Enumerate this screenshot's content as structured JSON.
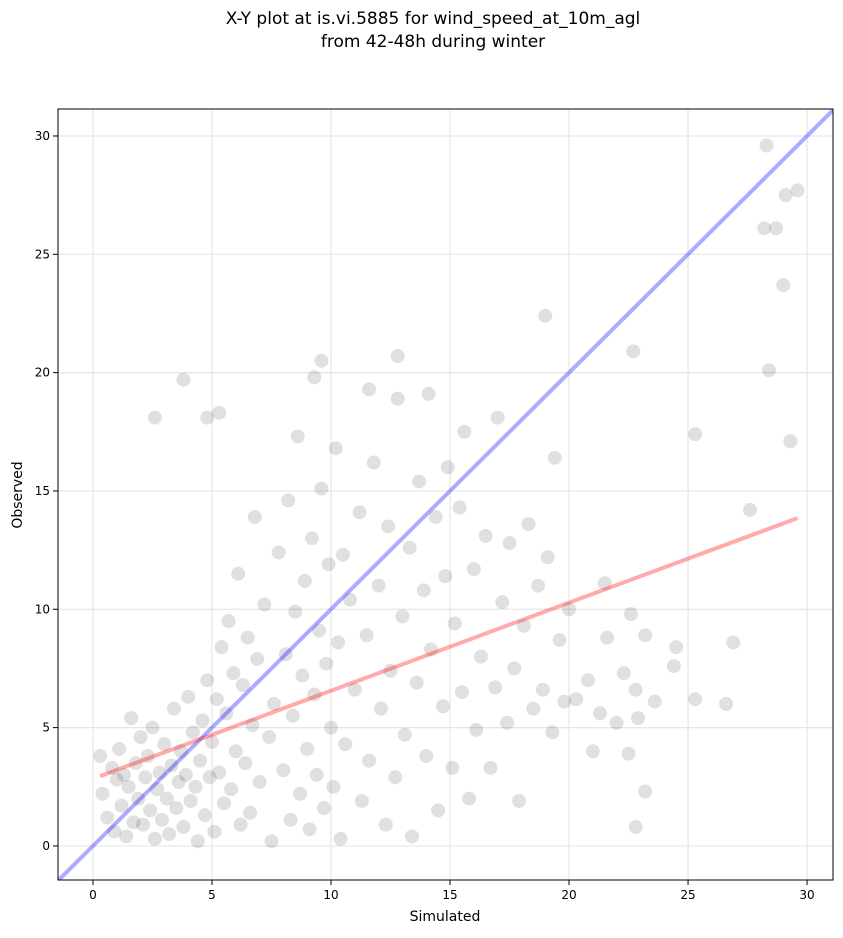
{
  "chart_data": {
    "type": "scatter",
    "title": "X-Y plot at is.vi.5885 for wind_speed_at_10m_agl",
    "subtitle": "from 42-48h during winter",
    "x_label": "Simulated",
    "y_label": "Observed",
    "xlim": [
      -1.47,
      31.09
    ],
    "ylim": [
      -1.44,
      31.14
    ],
    "xticks": [
      0,
      5,
      10,
      15,
      20,
      25,
      30
    ],
    "yticks": [
      0,
      5,
      10,
      15,
      20,
      25,
      30
    ],
    "grid": true,
    "series": [
      {
        "color": "#000000",
        "x": [
          0.3,
          0.4,
          0.6,
          0.8,
          0.9,
          1.0,
          1.1,
          1.2,
          1.3,
          1.4,
          1.5,
          1.6,
          1.7,
          1.8,
          1.9,
          2.0,
          2.1,
          2.2,
          2.3,
          2.4,
          2.5,
          2.6,
          2.7,
          2.8,
          2.9,
          3.0,
          3.1,
          3.2,
          3.3,
          3.4,
          3.5,
          3.6,
          3.7,
          3.8,
          3.9,
          4.0,
          4.1,
          4.2,
          4.3,
          4.4,
          4.5,
          4.6,
          4.7,
          4.8,
          4.9,
          5.0,
          5.1,
          5.2,
          5.3,
          5.4,
          5.5,
          5.6,
          5.7,
          5.8,
          5.9,
          6.0,
          6.1,
          6.2,
          6.3,
          6.4,
          6.5,
          6.6,
          6.7,
          6.8,
          6.9,
          7.0,
          7.2,
          7.4,
          7.5,
          7.6,
          7.8,
          8.0,
          8.1,
          8.2,
          8.3,
          8.4,
          8.5,
          8.6,
          8.7,
          8.8,
          8.9,
          9.0,
          9.1,
          9.2,
          9.3,
          9.4,
          9.5,
          9.6,
          9.7,
          9.8,
          9.9,
          10.0,
          10.1,
          10.2,
          10.3,
          10.4,
          10.5,
          10.6,
          10.8,
          11.0,
          11.2,
          11.3,
          11.5,
          11.6,
          11.8,
          12.0,
          12.1,
          12.3,
          12.4,
          12.5,
          12.7,
          12.8,
          13.0,
          13.1,
          13.3,
          13.4,
          13.6,
          13.7,
          13.9,
          14.0,
          14.1,
          14.2,
          14.4,
          14.5,
          14.7,
          14.8,
          14.9,
          15.1,
          15.2,
          15.4,
          15.5,
          15.6,
          15.8,
          16.0,
          16.1,
          16.3,
          16.5,
          16.7,
          16.9,
          17.0,
          17.2,
          17.4,
          17.5,
          17.7,
          17.9,
          18.1,
          18.3,
          18.5,
          18.7,
          18.9,
          19.1,
          19.3,
          19.4,
          19.6,
          19.8,
          20.0,
          20.3,
          20.8,
          21.0,
          21.3,
          21.5,
          21.6,
          22.0,
          22.3,
          22.5,
          22.6,
          22.8,
          22.9,
          23.2,
          23.6,
          24.4,
          24.5,
          28.3,
          29.6,
          29.1,
          28.2,
          28.7,
          29.0,
          28.4,
          29.3,
          19.0,
          22.7,
          25.3,
          27.6,
          26.9,
          26.6,
          25.3,
          23.2,
          22.8,
          3.8,
          2.6,
          4.8,
          5.3,
          9.6,
          12.8,
          11.6,
          9.3
        ],
        "values": [
          3.8,
          2.2,
          1.2,
          3.3,
          0.6,
          2.8,
          4.1,
          1.7,
          3.0,
          0.4,
          2.5,
          5.4,
          1.0,
          3.5,
          2.0,
          4.6,
          0.9,
          2.9,
          3.8,
          1.5,
          5.0,
          0.3,
          2.4,
          3.1,
          1.1,
          4.3,
          2.0,
          0.5,
          3.4,
          5.8,
          1.6,
          2.7,
          4.0,
          0.8,
          3.0,
          6.3,
          1.9,
          4.8,
          2.5,
          0.2,
          3.6,
          5.3,
          1.3,
          7.0,
          2.9,
          4.4,
          0.6,
          6.2,
          3.1,
          8.4,
          1.8,
          5.6,
          9.5,
          2.4,
          7.3,
          4.0,
          11.5,
          0.9,
          6.8,
          3.5,
          8.8,
          1.4,
          5.1,
          13.9,
          7.9,
          2.7,
          10.2,
          4.6,
          0.2,
          6.0,
          12.4,
          3.2,
          8.1,
          14.6,
          1.1,
          5.5,
          9.9,
          17.3,
          2.2,
          7.2,
          11.2,
          4.1,
          0.7,
          13.0,
          6.4,
          3.0,
          9.1,
          15.1,
          1.6,
          7.7,
          11.9,
          5.0,
          2.5,
          16.8,
          8.6,
          0.3,
          12.3,
          4.3,
          10.4,
          6.6,
          14.1,
          1.9,
          8.9,
          3.6,
          16.2,
          11.0,
          5.8,
          0.9,
          13.5,
          7.4,
          2.9,
          18.9,
          9.7,
          4.7,
          12.6,
          0.4,
          6.9,
          15.4,
          10.8,
          3.8,
          19.1,
          8.3,
          13.9,
          1.5,
          5.9,
          11.4,
          16.0,
          3.3,
          9.4,
          14.3,
          6.5,
          17.5,
          2.0,
          11.7,
          4.9,
          8.0,
          13.1,
          3.3,
          6.7,
          18.1,
          10.3,
          5.2,
          12.8,
          7.5,
          1.9,
          9.3,
          13.6,
          5.8,
          11.0,
          6.6,
          12.2,
          4.8,
          16.4,
          8.7,
          6.1,
          10.0,
          6.2,
          7.0,
          4.0,
          5.6,
          11.1,
          8.8,
          5.2,
          7.3,
          3.9,
          9.8,
          6.6,
          5.4,
          8.9,
          6.1,
          7.6,
          8.4,
          29.6,
          27.7,
          27.5,
          26.1,
          26.1,
          23.7,
          20.1,
          17.1,
          22.4,
          20.9,
          17.4,
          14.2,
          8.6,
          6.0,
          6.2,
          2.3,
          0.8,
          19.7,
          18.1,
          18.1,
          18.3,
          20.5,
          20.7,
          19.3,
          19.8
        ]
      }
    ],
    "lines": [
      {
        "color": "#0000ff",
        "x": [
          -1.47,
          31.09
        ],
        "values": [
          -1.47,
          31.09
        ]
      },
      {
        "color": "#ff0000",
        "x": [
          0.3,
          29.6
        ],
        "values": [
          2.95,
          13.85
        ]
      }
    ]
  }
}
